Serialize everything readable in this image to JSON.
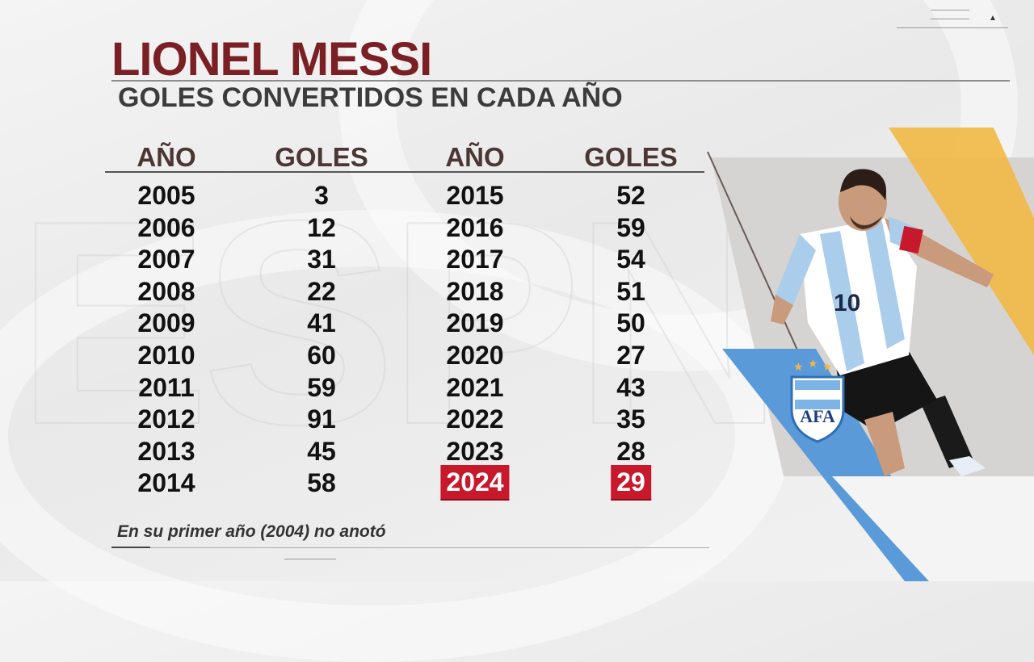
{
  "title": "LIONEL MESSI",
  "subtitle": "GOLES CONVERTIDOS EN CADA AÑO",
  "headers": {
    "year_left": "AÑO",
    "goals_left": "GOLES",
    "year_right": "AÑO",
    "goals_right": "GOLES"
  },
  "rows": [
    {
      "year_a": "2005",
      "goals_a": "3",
      "year_b": "2015",
      "goals_b": "52"
    },
    {
      "year_a": "2006",
      "goals_a": "12",
      "year_b": "2016",
      "goals_b": "59"
    },
    {
      "year_a": "2007",
      "goals_a": "31",
      "year_b": "2017",
      "goals_b": "54"
    },
    {
      "year_a": "2008",
      "goals_a": "22",
      "year_b": "2018",
      "goals_b": "51"
    },
    {
      "year_a": "2009",
      "goals_a": "41",
      "year_b": "2019",
      "goals_b": "50"
    },
    {
      "year_a": "2010",
      "goals_a": "60",
      "year_b": "2020",
      "goals_b": "27"
    },
    {
      "year_a": "2011",
      "goals_a": "59",
      "year_b": "2021",
      "goals_b": "43"
    },
    {
      "year_a": "2012",
      "goals_a": "91",
      "year_b": "2022",
      "goals_b": "35"
    },
    {
      "year_a": "2013",
      "goals_a": "45",
      "year_b": "2023",
      "goals_b": "28"
    },
    {
      "year_a": "2014",
      "goals_a": "58",
      "year_b": "2024",
      "goals_b": "29"
    }
  ],
  "highlight": {
    "row_index": 9,
    "columns": [
      "year_b",
      "goals_b"
    ],
    "color": "#c8182b"
  },
  "footnote": "En su primer año (2004) no anotó",
  "colors": {
    "title": "#7a1f24",
    "accent_yellow": "#f2b845",
    "accent_blue": "#5b9ad8",
    "jersey_sky": "#a9cdeb"
  },
  "photo": {
    "player_number": "10",
    "crest_initials": "AFA"
  },
  "icons": [
    "menu-icon",
    "caret-up-icon",
    "afa-crest-icon"
  ]
}
